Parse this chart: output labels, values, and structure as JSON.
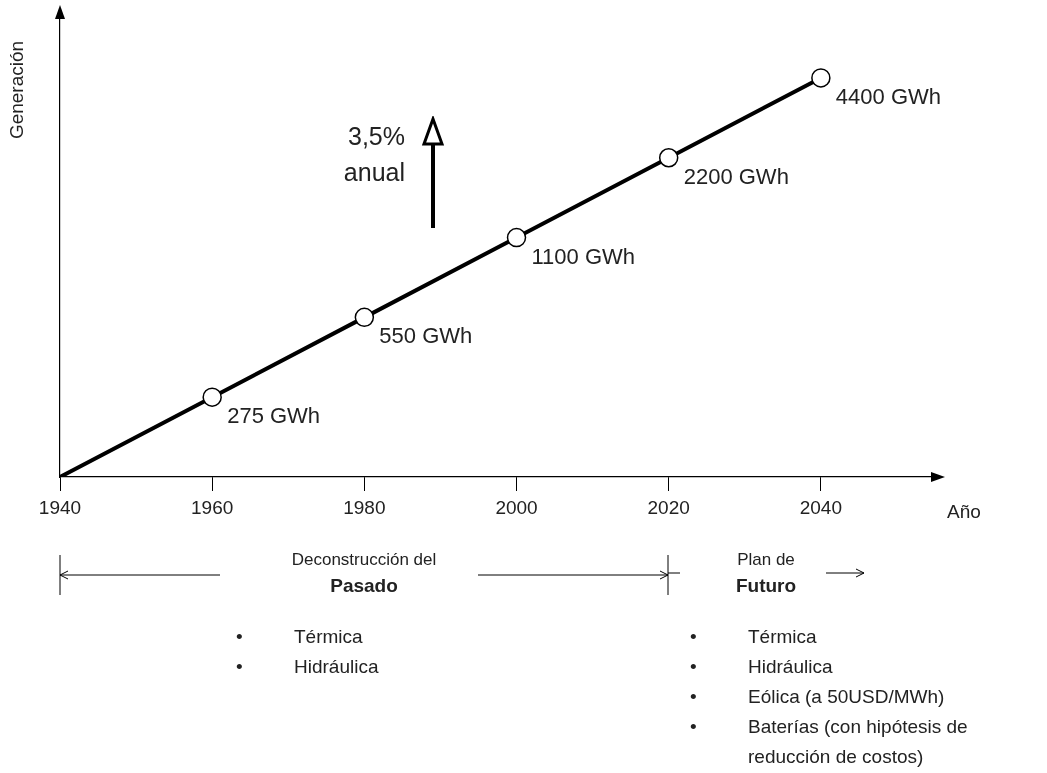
{
  "chart_data": {
    "type": "line",
    "xlabel": "Año",
    "ylabel": "Generación",
    "x": [
      1940,
      1960,
      1980,
      2000,
      2020,
      2040
    ],
    "series": [
      {
        "color": "#000000",
        "values": [
          137.5,
          275,
          550,
          1100,
          2200,
          4400
        ],
        "value_labels": [
          null,
          "275 GWh",
          "550 GWh",
          "1100 GWh",
          "2200 GWh",
          "4400 GWh"
        ]
      }
    ],
    "xlim": [
      1940,
      2055
    ],
    "xticks": [
      1940,
      1960,
      1980,
      2000,
      2020,
      2040
    ],
    "ylim": [
      137.5,
      7600
    ],
    "log": "y",
    "tick_labels": "x",
    "grid": false,
    "legend": false,
    "marker": "circle",
    "line_style": "solid",
    "annotations": [
      "3,5%\nanual",
      "Deconstrucción del Pasado",
      "Plan de Futuro",
      "• Térmica\n• Hidráulica",
      "• Térmica\n• Hidráulica\n• Eólica (a 50USD/MWh)\n• Baterías (con hipótesis de reducción de costos)"
    ]
  }
}
